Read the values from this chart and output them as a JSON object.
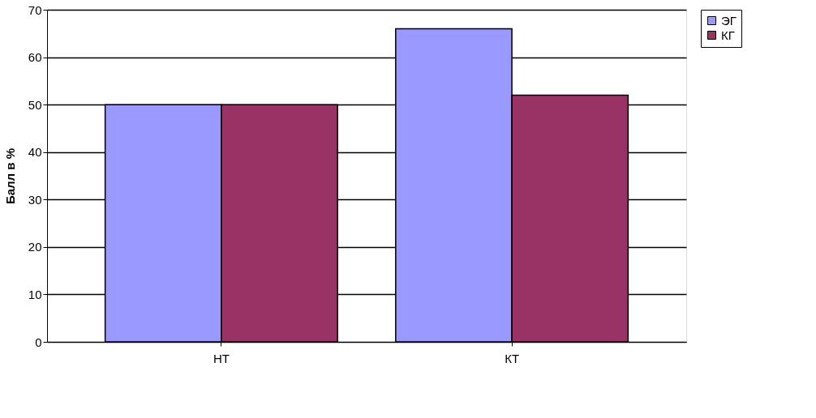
{
  "chart_data": {
    "type": "bar",
    "ylabel": "Балл в %",
    "categories": [
      "НТ",
      "КТ"
    ],
    "series": [
      {
        "name": "ЭГ",
        "color": "#9999ff",
        "values": [
          50,
          66
        ]
      },
      {
        "name": "КГ",
        "color": "#993366",
        "values": [
          50,
          52
        ]
      }
    ],
    "ylim": [
      0,
      70
    ],
    "yticks": [
      0,
      10,
      20,
      30,
      40,
      50,
      60,
      70
    ],
    "grid": "y",
    "legend": "right"
  }
}
